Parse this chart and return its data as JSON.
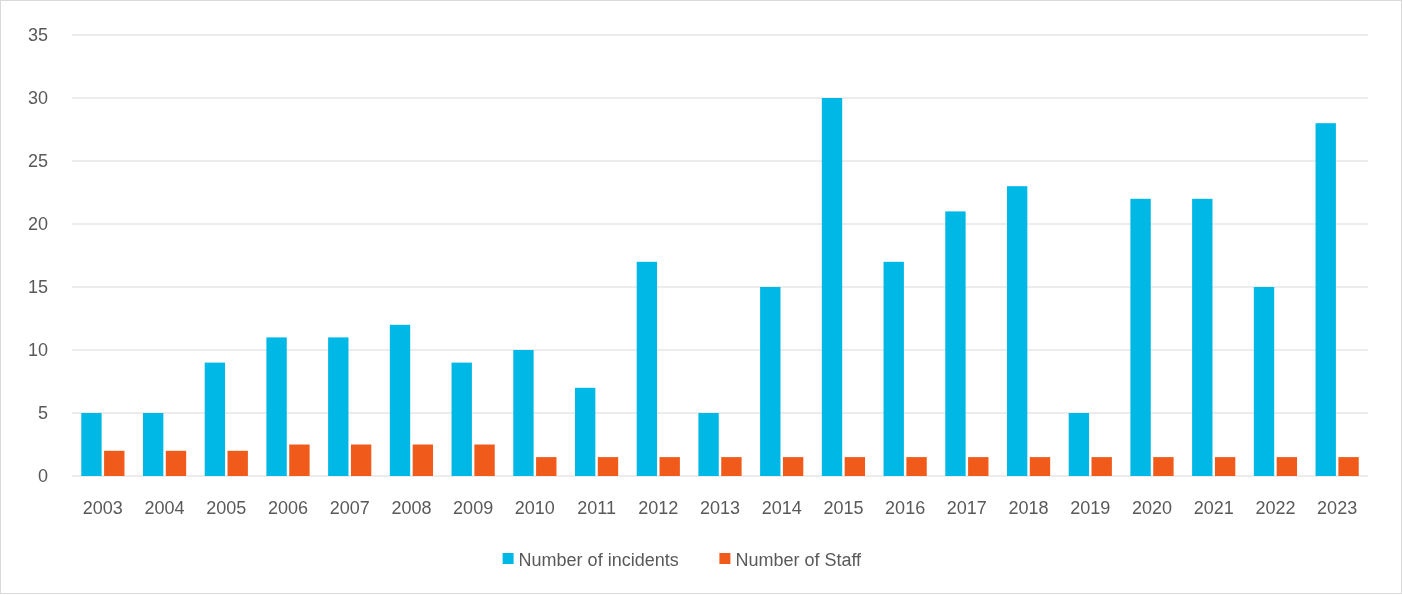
{
  "chart_data": {
    "type": "bar",
    "categories": [
      "2003",
      "2004",
      "2005",
      "2006",
      "2007",
      "2008",
      "2009",
      "2010",
      "2011",
      "2012",
      "2013",
      "2014",
      "2015",
      "2016",
      "2017",
      "2018",
      "2019",
      "2020",
      "2021",
      "2022",
      "2023"
    ],
    "series": [
      {
        "name": "Number of incidents",
        "color": "#00b8e6",
        "values": [
          5,
          5,
          9,
          11,
          11,
          12,
          9,
          10,
          7,
          17,
          5,
          15,
          30,
          17,
          21,
          23,
          5,
          22,
          22,
          15,
          28
        ]
      },
      {
        "name": "Number of Staff",
        "color": "#f05a1a",
        "values": [
          2,
          2,
          2,
          2.5,
          2.5,
          2.5,
          2.5,
          1.5,
          1.5,
          1.5,
          1.5,
          1.5,
          1.5,
          1.5,
          1.5,
          1.5,
          1.5,
          1.5,
          1.5,
          1.5,
          1.5
        ]
      }
    ],
    "ylim": [
      0,
      35
    ],
    "yticks": [
      0,
      5,
      10,
      15,
      20,
      25,
      30,
      35
    ],
    "grid": "y",
    "legend": "bottom"
  }
}
